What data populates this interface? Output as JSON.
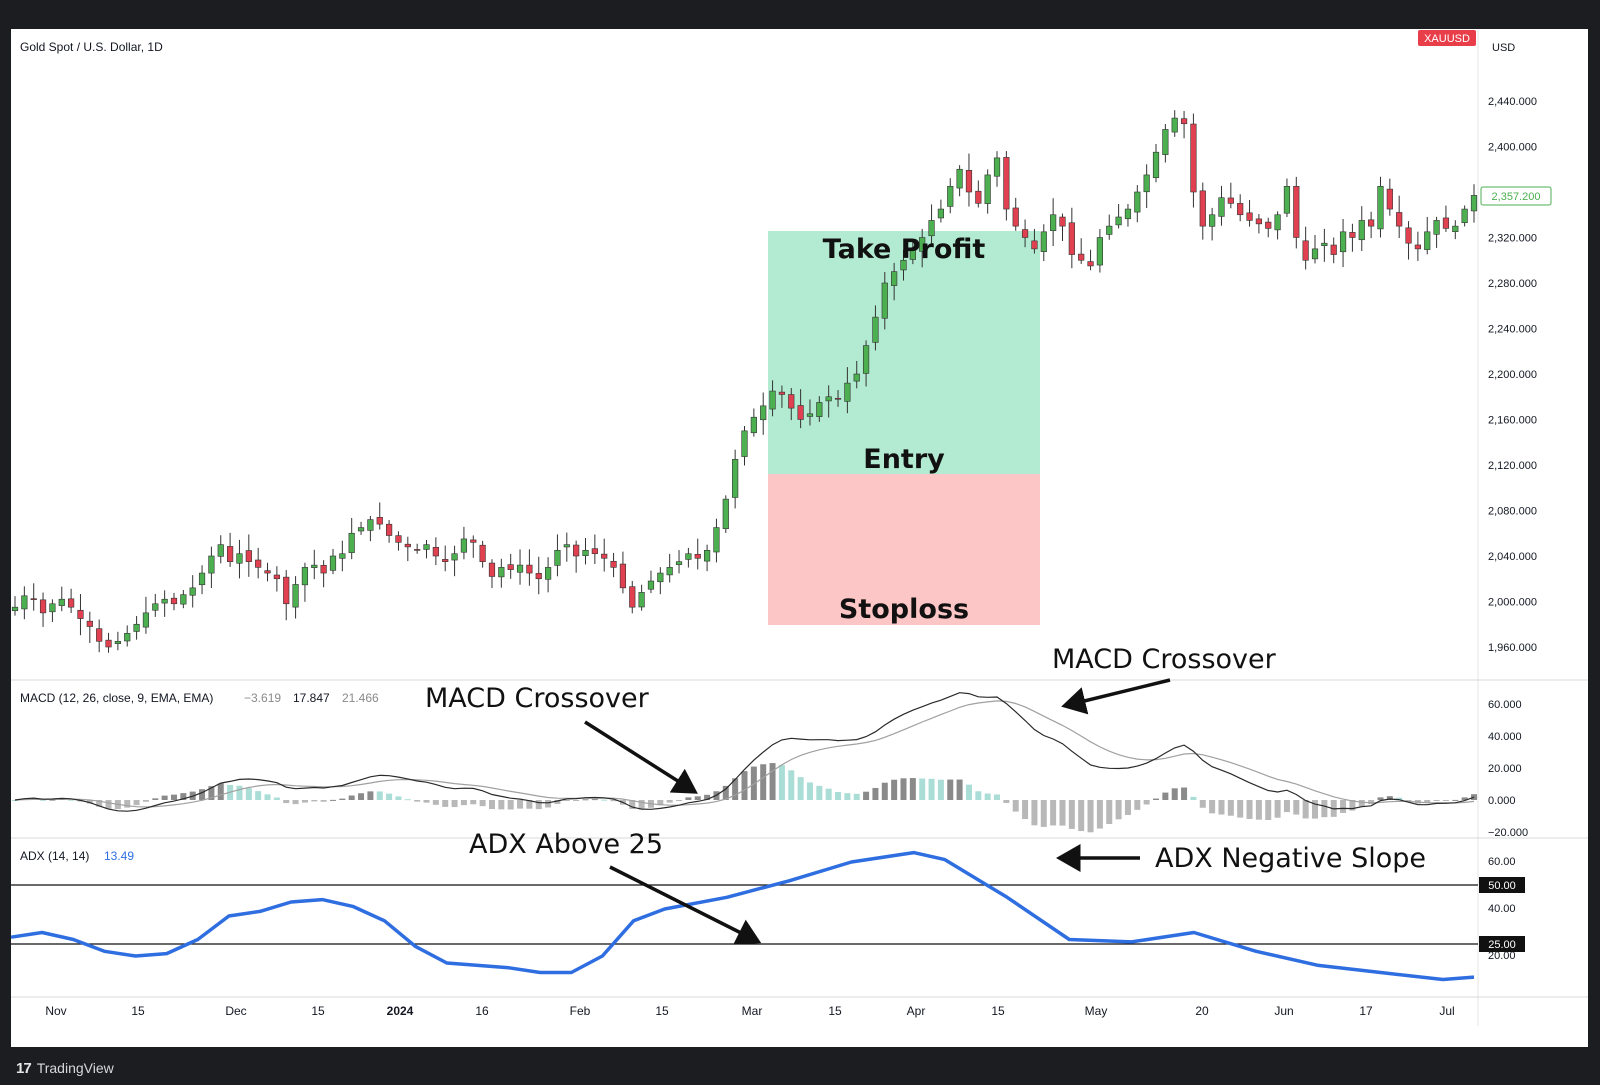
{
  "app": {
    "symbol_title": "Gold Spot / U.S. Dollar, 1D",
    "symbol_tag": "XAUUSD",
    "currency": "USD",
    "last_price": "2,357.200",
    "footer_brand": "TradingView"
  },
  "colors": {
    "up": "#4caf50",
    "down": "#e0404f",
    "tp_zone": "#b2ebd1",
    "sl_zone": "#fcc5c6",
    "adx_line": "#2f6ee0",
    "tag_bg": "#e83e4a",
    "price_tag_green": "#4caf50"
  },
  "price_axis": {
    "ticks": [
      "2,440.000",
      "2,400.000",
      "2,360.000",
      "2,320.000",
      "2,280.000",
      "2,240.000",
      "2,200.000",
      "2,160.000",
      "2,120.000",
      "2,080.000",
      "2,040.000",
      "2,000.000",
      "1,960.000"
    ]
  },
  "macd": {
    "legend": "MACD (12, 26, close, 9, EMA, EMA)",
    "v1": "−3.619",
    "v2": "17.847",
    "v3": "21.466",
    "ticks": [
      "60.000",
      "40.000",
      "20.000",
      "0.000",
      "−20.000"
    ]
  },
  "adx": {
    "legend": "ADX (14, 14)",
    "value": "13.49",
    "ticks": [
      "60.00",
      "40.00",
      "20.00"
    ],
    "level_50": "50.00",
    "level_25": "25.00"
  },
  "time_axis": {
    "labels": [
      "Nov",
      "15",
      "Dec",
      "15",
      "2024",
      "16",
      "Feb",
      "15",
      "Mar",
      "15",
      "Apr",
      "15",
      "May",
      "20",
      "Jun",
      "17",
      "Jul"
    ]
  },
  "annotations": {
    "take_profit": "Take Profit",
    "entry": "Entry",
    "stoploss": "Stoploss",
    "macd_crossover_1": "MACD Crossover",
    "macd_crossover_2": "MACD Crossover",
    "adx_above_25": "ADX Above 25",
    "adx_negative_slope": "ADX Negative Slope"
  },
  "chart_data": {
    "type": "candlestick",
    "title": "Gold Spot / U.S. Dollar, 1D",
    "price_range": [
      1940,
      2460
    ],
    "dates_start": "2023-10-30",
    "dates_end": "2024-07-08",
    "trade_levels": {
      "take_profit": 2325,
      "entry": 2112,
      "stoploss": 1978
    },
    "closes": [
      1995,
      2005,
      2002,
      1990,
      1998,
      2002,
      1995,
      1985,
      1978,
      1965,
      1960,
      1965,
      1972,
      1980,
      1990,
      1998,
      2002,
      1998,
      2006,
      2012,
      2025,
      2040,
      2050,
      2035,
      2042,
      2035,
      2030,
      2025,
      2020,
      1998,
      2015,
      2030,
      2032,
      2025,
      2040,
      2042,
      2060,
      2065,
      2072,
      2068,
      2058,
      2052,
      2048,
      2045,
      2050,
      2040,
      2035,
      2042,
      2055,
      2052,
      2035,
      2022,
      2030,
      2028,
      2032,
      2025,
      2020,
      2030,
      2045,
      2050,
      2040,
      2045,
      2042,
      2038,
      2030,
      2012,
      1995,
      2008,
      2018,
      2025,
      2030,
      2035,
      2042,
      2038,
      2045,
      2065,
      2090,
      2125,
      2150,
      2162,
      2172,
      2185,
      2182,
      2170,
      2160,
      2165,
      2175,
      2180,
      2178,
      2192,
      2200,
      2225,
      2250,
      2280,
      2290,
      2300,
      2310,
      2320,
      2335,
      2345,
      2365,
      2380,
      2360,
      2350,
      2375,
      2390,
      2345,
      2330,
      2320,
      2310,
      2325,
      2340,
      2330,
      2305,
      2300,
      2295,
      2320,
      2330,
      2338,
      2345,
      2360,
      2375,
      2395,
      2415,
      2425,
      2420,
      2360,
      2330,
      2340,
      2355,
      2350,
      2340,
      2335,
      2332,
      2328,
      2340,
      2365,
      2320,
      2300,
      2310,
      2315,
      2305,
      2325,
      2320,
      2335,
      2330,
      2365,
      2345,
      2330,
      2315,
      2310,
      2325,
      2335,
      2328,
      2330,
      2345,
      2357
    ]
  }
}
